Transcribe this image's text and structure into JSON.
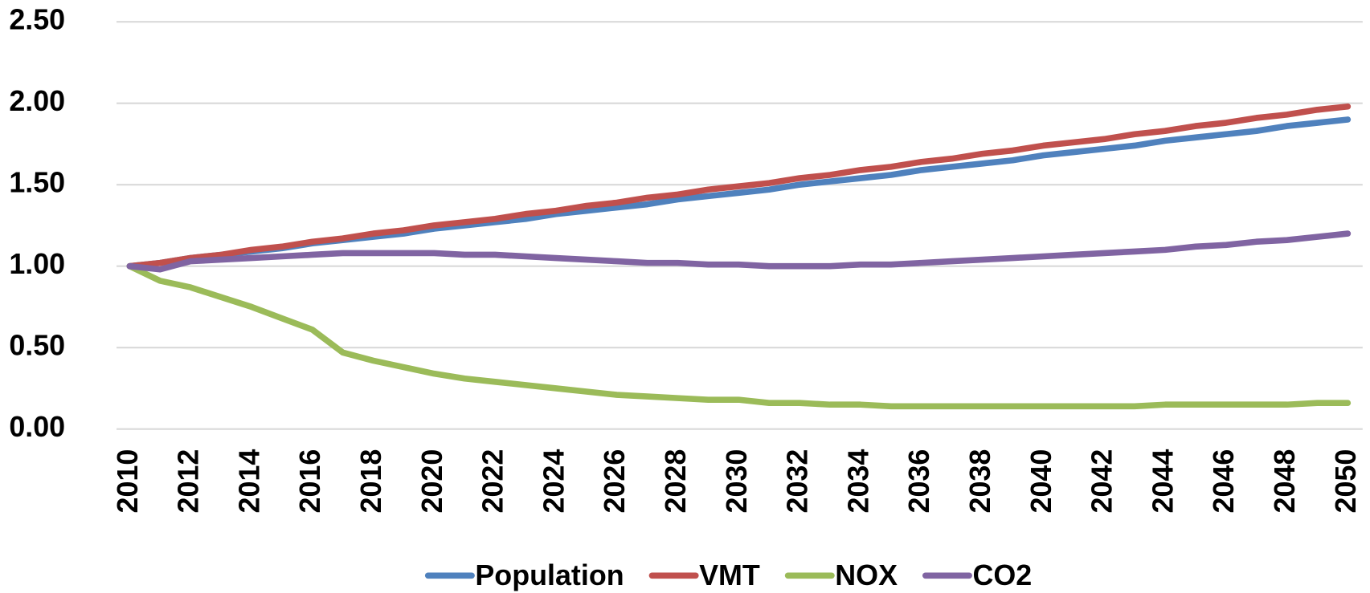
{
  "chart_data": {
    "type": "line",
    "x": [
      2010,
      2011,
      2012,
      2013,
      2014,
      2015,
      2016,
      2017,
      2018,
      2019,
      2020,
      2021,
      2022,
      2023,
      2024,
      2025,
      2026,
      2027,
      2028,
      2029,
      2030,
      2031,
      2032,
      2033,
      2034,
      2035,
      2036,
      2037,
      2038,
      2039,
      2040,
      2041,
      2042,
      2043,
      2044,
      2045,
      2046,
      2047,
      2048,
      2049,
      2050
    ],
    "xlim": [
      2010,
      2050
    ],
    "xticks": [
      2010,
      2012,
      2014,
      2016,
      2018,
      2020,
      2022,
      2024,
      2026,
      2028,
      2030,
      2032,
      2034,
      2036,
      2038,
      2040,
      2042,
      2044,
      2046,
      2048,
      2050
    ],
    "ylim": [
      0,
      2.5
    ],
    "yticks": [
      {
        "value": 0,
        "label": "0.00"
      },
      {
        "value": 0.5,
        "label": "0.50"
      },
      {
        "value": 1,
        "label": "1.00"
      },
      {
        "value": 1.5,
        "label": "1.50"
      },
      {
        "value": 2,
        "label": "2.00"
      },
      {
        "value": 2.5,
        "label": "2.50"
      }
    ],
    "grid": true,
    "legend": "bottom",
    "series": [
      {
        "name": "Population",
        "color": "#4f81bd",
        "values": [
          1.0,
          1.02,
          1.05,
          1.07,
          1.09,
          1.11,
          1.14,
          1.16,
          1.18,
          1.2,
          1.23,
          1.25,
          1.27,
          1.29,
          1.32,
          1.34,
          1.36,
          1.38,
          1.41,
          1.43,
          1.45,
          1.47,
          1.5,
          1.52,
          1.54,
          1.56,
          1.59,
          1.61,
          1.63,
          1.65,
          1.68,
          1.7,
          1.72,
          1.74,
          1.77,
          1.79,
          1.81,
          1.83,
          1.86,
          1.88,
          1.9
        ]
      },
      {
        "name": "VMT",
        "color": "#c0504d",
        "values": [
          1.0,
          1.02,
          1.05,
          1.07,
          1.1,
          1.12,
          1.15,
          1.17,
          1.2,
          1.22,
          1.25,
          1.27,
          1.29,
          1.32,
          1.34,
          1.37,
          1.39,
          1.42,
          1.44,
          1.47,
          1.49,
          1.51,
          1.54,
          1.56,
          1.59,
          1.61,
          1.64,
          1.66,
          1.69,
          1.71,
          1.74,
          1.76,
          1.78,
          1.81,
          1.83,
          1.86,
          1.88,
          1.91,
          1.93,
          1.96,
          1.98
        ]
      },
      {
        "name": "NOX",
        "color": "#9bbb59",
        "values": [
          1.0,
          0.91,
          0.87,
          0.81,
          0.75,
          0.68,
          0.61,
          0.47,
          0.42,
          0.38,
          0.34,
          0.31,
          0.29,
          0.27,
          0.25,
          0.23,
          0.21,
          0.2,
          0.19,
          0.18,
          0.18,
          0.16,
          0.16,
          0.15,
          0.15,
          0.14,
          0.14,
          0.14,
          0.14,
          0.14,
          0.14,
          0.14,
          0.14,
          0.14,
          0.15,
          0.15,
          0.15,
          0.15,
          0.15,
          0.16,
          0.16
        ]
      },
      {
        "name": "CO2",
        "color": "#8064a2",
        "values": [
          1.0,
          0.98,
          1.03,
          1.04,
          1.05,
          1.06,
          1.07,
          1.08,
          1.08,
          1.08,
          1.08,
          1.07,
          1.07,
          1.06,
          1.05,
          1.04,
          1.03,
          1.02,
          1.02,
          1.01,
          1.01,
          1.0,
          1.0,
          1.0,
          1.01,
          1.01,
          1.02,
          1.03,
          1.04,
          1.05,
          1.06,
          1.07,
          1.08,
          1.09,
          1.1,
          1.12,
          1.13,
          1.15,
          1.16,
          1.18,
          1.2
        ]
      }
    ]
  }
}
